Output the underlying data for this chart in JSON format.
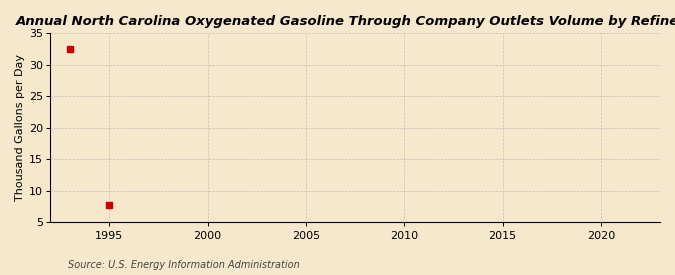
{
  "title": "Annual North Carolina Oxygenated Gasoline Through Company Outlets Volume by Refiners",
  "ylabel": "Thousand Gallons per Day",
  "source": "Source: U.S. Energy Information Administration",
  "x_data": [
    1993,
    1995
  ],
  "y_data": [
    32.5,
    7.7
  ],
  "marker_color": "#cc0000",
  "marker_size": 4,
  "xlim": [
    1992,
    2023
  ],
  "ylim": [
    5,
    35
  ],
  "xticks": [
    1995,
    2000,
    2005,
    2010,
    2015,
    2020
  ],
  "yticks": [
    5,
    10,
    15,
    20,
    25,
    30,
    35
  ],
  "background_color": "#f5e8cc",
  "grid_color": "#b0b0b0",
  "title_fontsize": 9.5,
  "axis_fontsize": 8,
  "tick_fontsize": 8,
  "source_fontsize": 7
}
